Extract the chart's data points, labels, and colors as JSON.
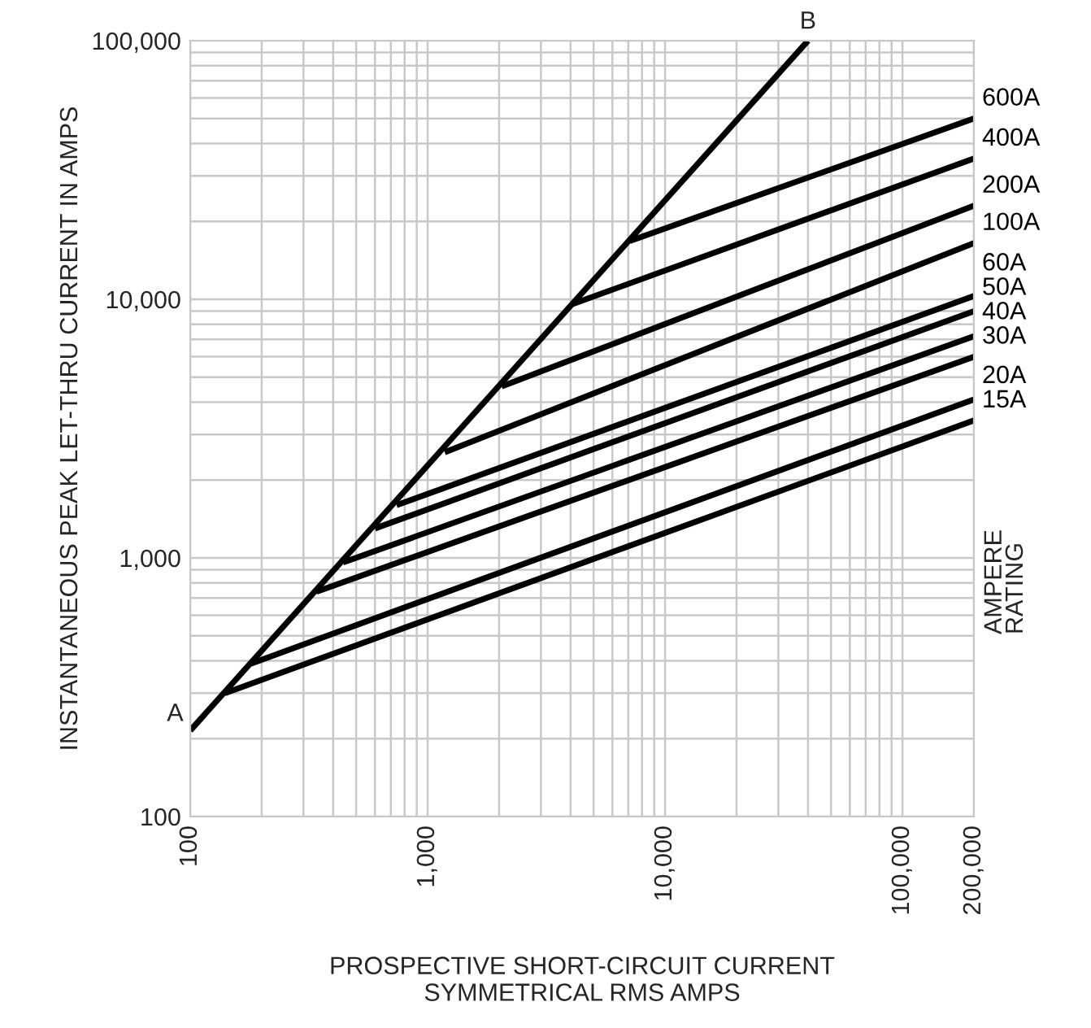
{
  "chart_data": {
    "type": "line",
    "xlabel": "PROSPECTIVE SHORT-CIRCUIT CURRENT\nSYMMETRICAL RMS AMPS",
    "ylabel": "INSTANTANEOUS PEAK LET-THRU CURRENT IN AMPS",
    "log": "xy",
    "grid": true,
    "legend": false,
    "marker": "none",
    "line_style": "solid",
    "xlim": [
      100,
      200000
    ],
    "ylim": [
      100,
      100000
    ],
    "xticks": [
      100,
      {
        "value": 1000,
        "label": "1,000"
      },
      {
        "value": 10000,
        "label": "10,000"
      },
      {
        "value": 100000,
        "label": "100,000"
      },
      {
        "value": 200000,
        "label": "200,000"
      }
    ],
    "yticks": [
      100,
      {
        "value": 1000,
        "label": "1,000"
      },
      {
        "value": 10000,
        "label": "10,000"
      },
      {
        "value": 100000,
        "label": "100,000"
      }
    ],
    "annotations": [
      {
        "text": "A",
        "x": 100,
        "y": 215
      },
      {
        "text": "B",
        "x": 40000,
        "y": 100000
      },
      "AMPERE\nRATING"
    ],
    "series": [
      {
        "color": "#000000",
        "x": [
          100,
          40000
        ],
        "values": [
          215,
          100000
        ]
      },
      {
        "name": "600A",
        "color": "#000000",
        "x": [
          7100,
          200000
        ],
        "values": [
          16800,
          50000
        ]
      },
      {
        "name": "400A",
        "color": "#000000",
        "x": [
          4100,
          200000
        ],
        "values": [
          9600,
          35000
        ]
      },
      {
        "name": "200A",
        "color": "#000000",
        "x": [
          2050,
          200000
        ],
        "values": [
          4600,
          23000
        ]
      },
      {
        "name": "100A",
        "color": "#000000",
        "x": [
          1180,
          200000
        ],
        "values": [
          2560,
          16500
        ]
      },
      {
        "name": "60A",
        "color": "#000000",
        "x": [
          740,
          200000
        ],
        "values": [
          1600,
          10300
        ]
      },
      {
        "name": "50A",
        "color": "#000000",
        "x": [
          600,
          200000
        ],
        "values": [
          1300,
          9000
        ]
      },
      {
        "name": "40A",
        "color": "#000000",
        "x": [
          440,
          200000
        ],
        "values": [
          960,
          7200
        ]
      },
      {
        "name": "30A",
        "color": "#000000",
        "x": [
          340,
          200000
        ],
        "values": [
          740,
          6000
        ]
      },
      {
        "name": "20A",
        "color": "#000000",
        "x": [
          180,
          200000
        ],
        "values": [
          390,
          4100
        ]
      },
      {
        "name": "15A",
        "color": "#000000",
        "x": [
          140,
          200000
        ],
        "values": [
          300,
          3400
        ]
      }
    ]
  }
}
